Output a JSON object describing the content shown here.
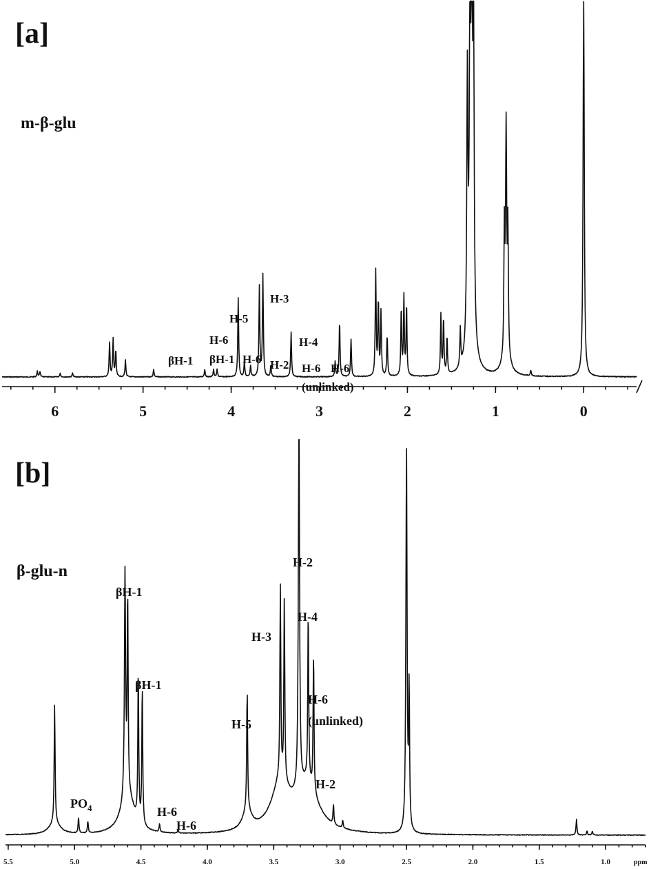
{
  "chart_data": [
    {
      "type": "line",
      "panel_label": "[a]",
      "title": "m-β-glu",
      "xlim": [
        6.6,
        -0.6
      ],
      "x_ticks": [
        "6",
        "5",
        "4",
        "3",
        "2",
        "1",
        "0"
      ],
      "x_tick_values": [
        6,
        5,
        4,
        3,
        2,
        1,
        0
      ],
      "peaks": [
        {
          "ppm": 6.2,
          "h": 0.015
        },
        {
          "ppm": 6.17,
          "h": 0.015
        },
        {
          "ppm": 5.94,
          "h": 0.01
        },
        {
          "ppm": 5.8,
          "h": 0.01
        },
        {
          "ppm": 5.38,
          "h": 0.09
        },
        {
          "ppm": 5.34,
          "h": 0.1
        },
        {
          "ppm": 5.31,
          "h": 0.07
        },
        {
          "ppm": 5.2,
          "h": 0.045
        },
        {
          "ppm": 4.88,
          "h": 0.02
        },
        {
          "ppm": 4.3,
          "h": 0.02
        },
        {
          "ppm": 4.2,
          "h": 0.02
        },
        {
          "ppm": 4.16,
          "h": 0.02
        },
        {
          "ppm": 3.92,
          "h": 0.21
        },
        {
          "ppm": 3.85,
          "h": 0.04
        },
        {
          "ppm": 3.78,
          "h": 0.03
        },
        {
          "ppm": 3.68,
          "h": 0.24
        },
        {
          "ppm": 3.64,
          "h": 0.27
        },
        {
          "ppm": 3.55,
          "h": 0.03
        },
        {
          "ppm": 3.32,
          "h": 0.12
        },
        {
          "ppm": 2.82,
          "h": 0.04
        },
        {
          "ppm": 2.77,
          "h": 0.15
        },
        {
          "ppm": 2.64,
          "h": 0.1
        },
        {
          "ppm": 2.36,
          "h": 0.28
        },
        {
          "ppm": 2.33,
          "h": 0.2
        },
        {
          "ppm": 2.3,
          "h": 0.17
        },
        {
          "ppm": 2.23,
          "h": 0.11
        },
        {
          "ppm": 2.07,
          "h": 0.18
        },
        {
          "ppm": 2.04,
          "h": 0.21
        },
        {
          "ppm": 2.01,
          "h": 0.19
        },
        {
          "ppm": 1.62,
          "h": 0.16
        },
        {
          "ppm": 1.59,
          "h": 0.15
        },
        {
          "ppm": 1.55,
          "h": 0.1
        },
        {
          "ppm": 1.4,
          "h": 0.1
        },
        {
          "ppm": 1.32,
          "h": 0.7
        },
        {
          "ppm": 1.29,
          "h": 0.95
        },
        {
          "ppm": 1.27,
          "h": 1.0
        },
        {
          "ppm": 1.25,
          "h": 0.9
        },
        {
          "ppm": 0.9,
          "h": 0.32
        },
        {
          "ppm": 0.88,
          "h": 0.6
        },
        {
          "ppm": 0.86,
          "h": 0.32
        },
        {
          "ppm": 0.6,
          "h": 0.015
        },
        {
          "ppm": 0.0,
          "h": 1.0
        }
      ],
      "annotations": [
        "βH-1",
        "H-6",
        "βH-1",
        "H-5",
        "H-6",
        "H-3",
        "H-2",
        "H-4",
        "H-6",
        "H-6",
        "(unlinked)"
      ]
    },
    {
      "type": "line",
      "panel_label": "[b]",
      "title": "β-glu-n",
      "xlim": [
        5.52,
        0.7
      ],
      "x_ticks": [
        "5.5",
        "5.0",
        "4.5",
        "4.0",
        "3.5",
        "3.0",
        "2.5",
        "2.0",
        "1.5",
        "1.0",
        "ppm"
      ],
      "x_tick_values": [
        5.5,
        5.0,
        4.5,
        4.0,
        3.5,
        3.0,
        2.5,
        2.0,
        1.5,
        1.0
      ],
      "peaks": [
        {
          "ppm": 5.15,
          "h": 0.3
        },
        {
          "ppm": 4.97,
          "h": 0.04
        },
        {
          "ppm": 4.9,
          "h": 0.03
        },
        {
          "ppm": 4.62,
          "h": 0.57
        },
        {
          "ppm": 4.6,
          "h": 0.5
        },
        {
          "ppm": 4.52,
          "h": 0.38
        },
        {
          "ppm": 4.49,
          "h": 0.35
        },
        {
          "ppm": 4.36,
          "h": 0.02
        },
        {
          "ppm": 4.22,
          "h": 0.01
        },
        {
          "ppm": 3.7,
          "h": 0.3
        },
        {
          "ppm": 3.45,
          "h": 0.48
        },
        {
          "ppm": 3.42,
          "h": 0.46
        },
        {
          "ppm": 3.31,
          "h": 1.0
        },
        {
          "ppm": 3.24,
          "h": 0.43
        },
        {
          "ppm": 3.2,
          "h": 0.35
        },
        {
          "ppm": 3.05,
          "h": 0.05
        },
        {
          "ppm": 2.98,
          "h": 0.02
        },
        {
          "ppm": 2.5,
          "h": 0.97
        },
        {
          "ppm": 2.48,
          "h": 0.35
        },
        {
          "ppm": 1.22,
          "h": 0.04
        },
        {
          "ppm": 1.14,
          "h": 0.01
        },
        {
          "ppm": 1.1,
          "h": 0.01
        }
      ],
      "annotations": [
        "βH-1",
        "βH-1",
        "PO4",
        "H-6",
        "H-6",
        "H-5",
        "H-3",
        "H-2",
        "H-4",
        "H-6",
        "(unlinked)",
        "H-2"
      ]
    }
  ]
}
